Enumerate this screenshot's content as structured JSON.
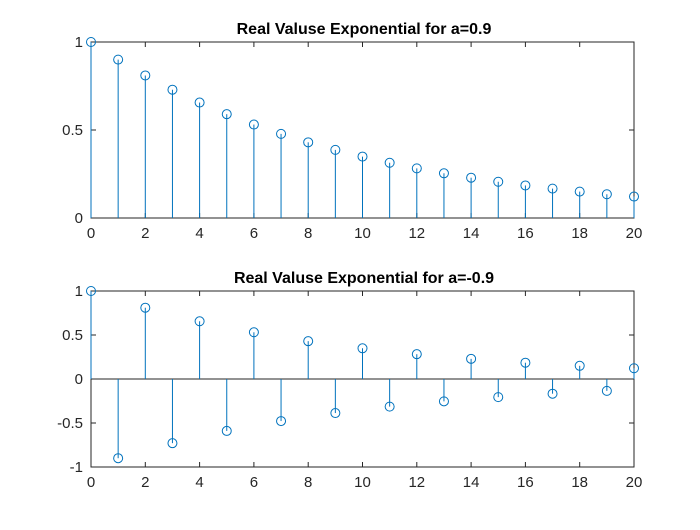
{
  "chart_data": [
    {
      "type": "stem",
      "title": "Real Valuse Exponential for a=0.9",
      "xlabel": "",
      "ylabel": "",
      "xlim": [
        0,
        20
      ],
      "ylim": [
        0,
        1
      ],
      "xticks": [
        "0",
        "2",
        "4",
        "6",
        "8",
        "10",
        "12",
        "14",
        "16",
        "18",
        "20"
      ],
      "yticks": [
        "0",
        "0.5",
        "1"
      ],
      "grid": false,
      "color": "#0072BD",
      "x": [
        0,
        1,
        2,
        3,
        4,
        5,
        6,
        7,
        8,
        9,
        10,
        11,
        12,
        13,
        14,
        15,
        16,
        17,
        18,
        19,
        20
      ],
      "values": [
        1,
        0.9,
        0.81,
        0.729,
        0.656,
        0.59,
        0.531,
        0.478,
        0.43,
        0.387,
        0.349,
        0.314,
        0.282,
        0.254,
        0.229,
        0.206,
        0.185,
        0.167,
        0.15,
        0.135,
        0.122
      ]
    },
    {
      "type": "stem",
      "title": "Real Valuse Exponential for a=-0.9",
      "xlabel": "",
      "ylabel": "",
      "xlim": [
        0,
        20
      ],
      "ylim": [
        -1,
        1
      ],
      "xticks": [
        "0",
        "2",
        "4",
        "6",
        "8",
        "10",
        "12",
        "14",
        "16",
        "18",
        "20"
      ],
      "yticks": [
        "-1",
        "-0.5",
        "0",
        "0.5",
        "1"
      ],
      "grid": false,
      "color": "#0072BD",
      "x": [
        0,
        1,
        2,
        3,
        4,
        5,
        6,
        7,
        8,
        9,
        10,
        11,
        12,
        13,
        14,
        15,
        16,
        17,
        18,
        19,
        20
      ],
      "values": [
        1,
        -0.9,
        0.81,
        -0.729,
        0.656,
        -0.59,
        0.531,
        -0.478,
        0.43,
        -0.387,
        0.349,
        -0.314,
        0.282,
        -0.254,
        0.229,
        -0.206,
        0.185,
        -0.167,
        0.15,
        -0.135,
        0.122
      ]
    }
  ]
}
